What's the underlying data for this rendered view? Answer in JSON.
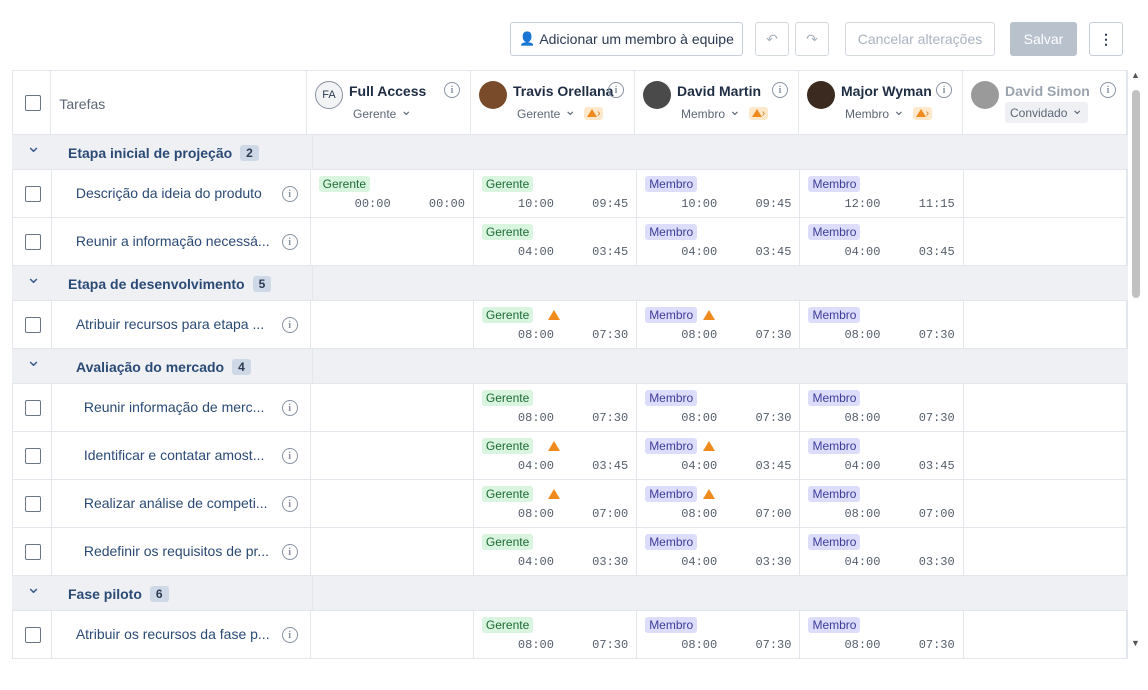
{
  "toolbar": {
    "add_member": "Adicionar um membro à equipe",
    "cancel": "Cancelar alterações",
    "save": "Salvar",
    "more": "⋮",
    "undo": "↶",
    "redo": "↷"
  },
  "header": {
    "tasks": "Tarefas"
  },
  "members": [
    {
      "name": "Full Access",
      "role": "Gerente",
      "initials": "FA",
      "warn": false,
      "color": "#f2f3f5"
    },
    {
      "name": "Travis Orellana",
      "role": "Gerente",
      "warn": true,
      "color": "#7a4b2a"
    },
    {
      "name": "David Martin",
      "role": "Membro",
      "warn": true,
      "color": "#4a4a4a"
    },
    {
      "name": "Major Wyman",
      "role": "Membro",
      "warn": true,
      "color": "#3b2a20"
    },
    {
      "name": "David Simon",
      "role": "Convidado",
      "warn": false,
      "color": "#9a9a9a"
    }
  ],
  "rows": [
    {
      "group": "Etapa inicial de projeção",
      "count": "2",
      "indent": 0
    },
    {
      "task": "Descrição da ideia do produto",
      "indent": 0,
      "cells": [
        [
          "Gerente",
          "00:00",
          "00:00",
          false
        ],
        [
          "Gerente",
          "10:00",
          "09:45",
          false
        ],
        [
          "Membro",
          "10:00",
          "09:45",
          false
        ],
        [
          "Membro",
          "12:00",
          "11:15",
          false
        ]
      ]
    },
    {
      "task": "Reunir a informação necessá...",
      "indent": 0,
      "cells": [
        null,
        [
          "Gerente",
          "04:00",
          "03:45",
          false
        ],
        [
          "Membro",
          "04:00",
          "03:45",
          false
        ],
        [
          "Membro",
          "04:00",
          "03:45",
          false
        ]
      ]
    },
    {
      "group": "Etapa de desenvolvimento",
      "count": "5",
      "indent": 0
    },
    {
      "task": "Atribuir recursos para etapa ...",
      "indent": 0,
      "cells": [
        null,
        [
          "Gerente",
          "08:00",
          "07:30",
          true
        ],
        [
          "Membro",
          "08:00",
          "07:30",
          true
        ],
        [
          "Membro",
          "08:00",
          "07:30",
          false
        ]
      ]
    },
    {
      "group": "Avaliação do mercado",
      "count": "4",
      "indent": 1
    },
    {
      "task": "Reunir informação de merc...",
      "indent": 1,
      "cells": [
        null,
        [
          "Gerente",
          "08:00",
          "07:30",
          false
        ],
        [
          "Membro",
          "08:00",
          "07:30",
          false
        ],
        [
          "Membro",
          "08:00",
          "07:30",
          false
        ]
      ]
    },
    {
      "task": "Identificar e contatar amost...",
      "indent": 1,
      "cells": [
        null,
        [
          "Gerente",
          "04:00",
          "03:45",
          true
        ],
        [
          "Membro",
          "04:00",
          "03:45",
          true
        ],
        [
          "Membro",
          "04:00",
          "03:45",
          false
        ]
      ]
    },
    {
      "task": "Realizar análise de competi...",
      "indent": 1,
      "cells": [
        null,
        [
          "Gerente",
          "08:00",
          "07:00",
          true
        ],
        [
          "Membro",
          "08:00",
          "07:00",
          true
        ],
        [
          "Membro",
          "08:00",
          "07:00",
          false
        ]
      ]
    },
    {
      "task": "Redefinir os requisitos de pr...",
      "indent": 1,
      "cells": [
        null,
        [
          "Gerente",
          "04:00",
          "03:30",
          false
        ],
        [
          "Membro",
          "04:00",
          "03:30",
          false
        ],
        [
          "Membro",
          "04:00",
          "03:30",
          false
        ]
      ]
    },
    {
      "group": "Fase piloto",
      "count": "6",
      "indent": 0
    },
    {
      "task": "Atribuir os recursos da fase p...",
      "indent": 0,
      "cells": [
        null,
        [
          "Gerente",
          "08:00",
          "07:30",
          false
        ],
        [
          "Membro",
          "08:00",
          "07:30",
          false
        ],
        [
          "Membro",
          "08:00",
          "07:30",
          false
        ]
      ]
    }
  ]
}
